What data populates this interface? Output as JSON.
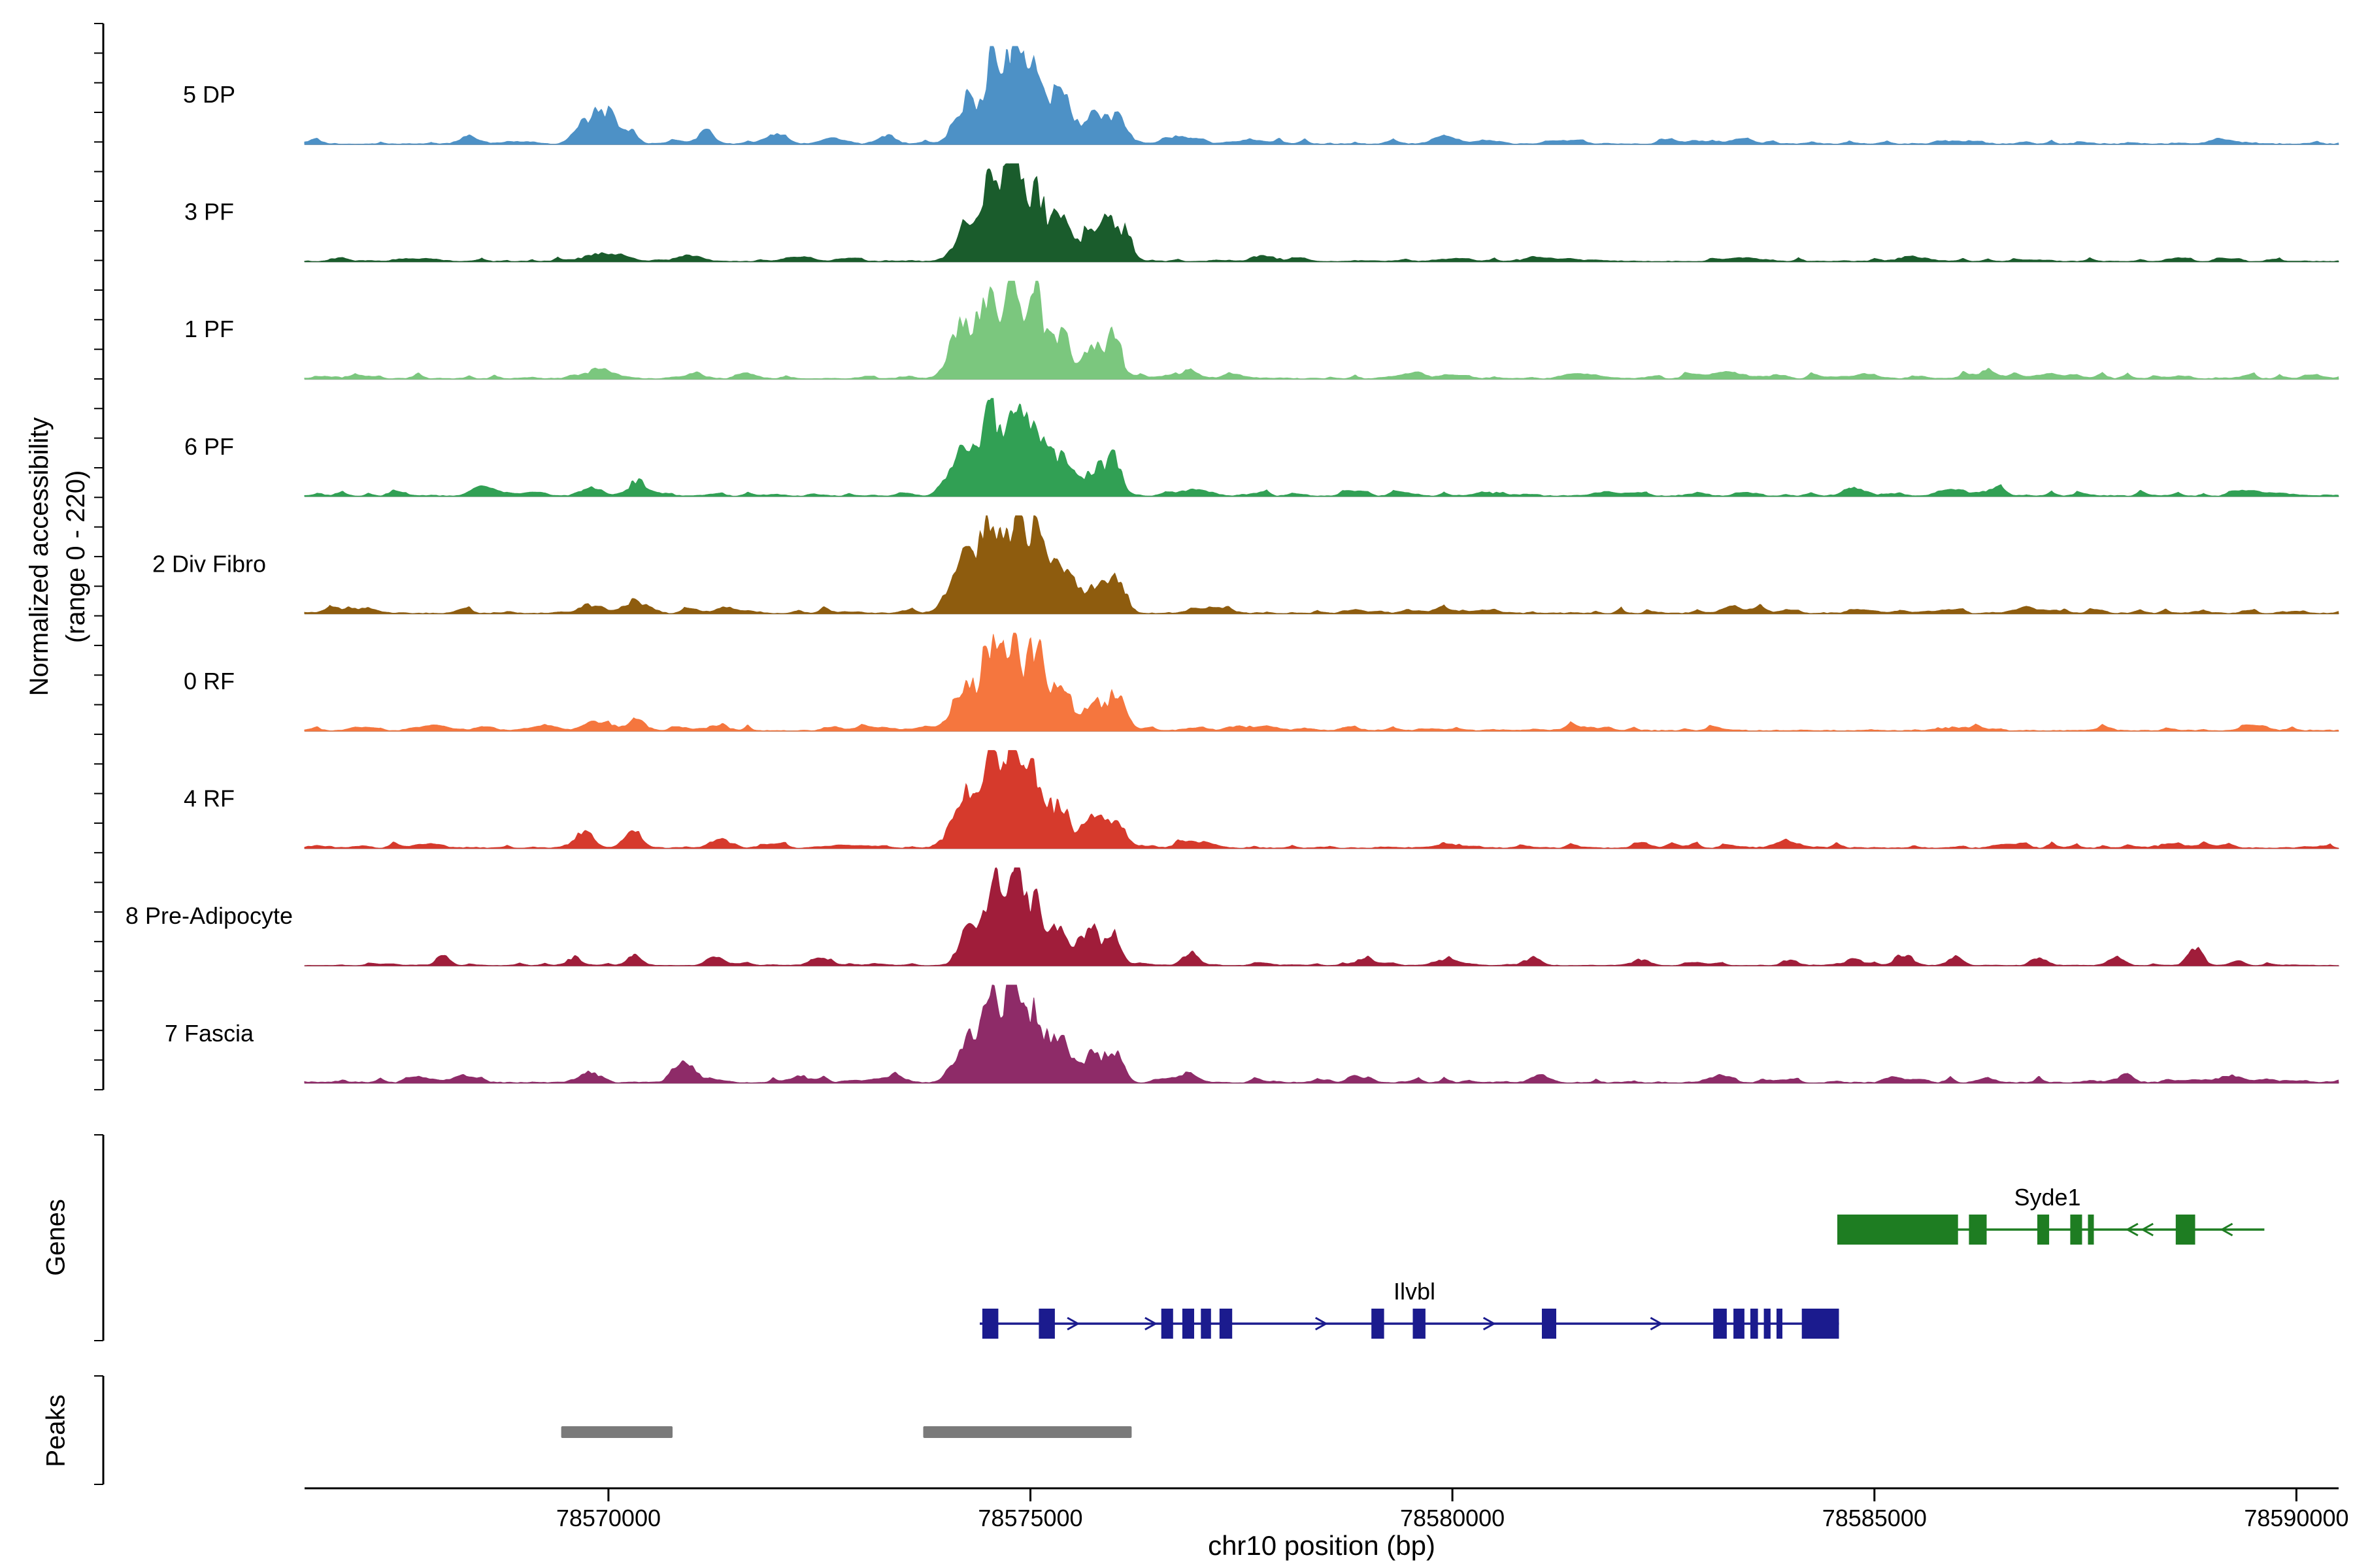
{
  "figure": {
    "y_axis_label_line1": "Normalized accessibility",
    "y_axis_label_line2": "(range 0 - 220)",
    "genes_label": "Genes",
    "peaks_label": "Peaks",
    "x_axis_title": "chr10 position (bp)",
    "colors": {
      "baseline": "#9c9c9c",
      "axis": "#000000",
      "peak_bar": "#7a7a7a"
    }
  },
  "chart_data": {
    "type": "area",
    "title": "",
    "xlabel": "chr10 position (bp)",
    "ylabel": "Normalized accessibility (range 0 - 220)",
    "x_domain_bp": [
      78566400,
      78590500
    ],
    "x_ticks": [
      78570000,
      78575000,
      78580000,
      78585000,
      78590000
    ],
    "track_value_range": [
      0,
      220
    ],
    "signal_model": "peaks are [center_bp, width_bp, height_fraction_of_track_max]",
    "tracks": [
      {
        "label": "5 DP",
        "color": "#4d91c6",
        "noise": 0.028,
        "peaks": [
          [
            78568300,
            200,
            0.04
          ],
          [
            78569650,
            180,
            0.14
          ],
          [
            78569850,
            220,
            0.3
          ],
          [
            78570060,
            180,
            0.24
          ],
          [
            78570260,
            140,
            0.12
          ],
          [
            78571150,
            160,
            0.09
          ],
          [
            78571950,
            300,
            0.05
          ],
          [
            78572600,
            200,
            0.04
          ],
          [
            78573300,
            200,
            0.06
          ],
          [
            78574250,
            260,
            0.45
          ],
          [
            78574550,
            200,
            0.78
          ],
          [
            78574800,
            180,
            1.0
          ],
          [
            78575060,
            200,
            0.9
          ],
          [
            78575350,
            240,
            0.5
          ],
          [
            78575800,
            280,
            0.3
          ],
          [
            78576080,
            180,
            0.2
          ],
          [
            78576700,
            250,
            0.07
          ],
          [
            78577600,
            300,
            0.04
          ],
          [
            78580000,
            400,
            0.03
          ],
          [
            78583000,
            400,
            0.03
          ],
          [
            78586000,
            400,
            0.03
          ]
        ]
      },
      {
        "label": "3 PF",
        "color": "#1a5c2c",
        "noise": 0.022,
        "peaks": [
          [
            78569900,
            400,
            0.07
          ],
          [
            78570900,
            300,
            0.04
          ],
          [
            78574250,
            260,
            0.42
          ],
          [
            78574550,
            200,
            0.82
          ],
          [
            78574800,
            180,
            1.0
          ],
          [
            78575060,
            200,
            0.72
          ],
          [
            78575350,
            240,
            0.45
          ],
          [
            78575700,
            200,
            0.3
          ],
          [
            78575950,
            200,
            0.45
          ],
          [
            78576150,
            150,
            0.2
          ],
          [
            78577800,
            300,
            0.04
          ],
          [
            78581000,
            400,
            0.03
          ],
          [
            78585500,
            400,
            0.03
          ]
        ]
      },
      {
        "label": "1 PF",
        "color": "#7bc77e",
        "noise": 0.028,
        "peaks": [
          [
            78569900,
            350,
            0.09
          ],
          [
            78571000,
            250,
            0.05
          ],
          [
            78574200,
            280,
            0.55
          ],
          [
            78574500,
            200,
            0.85
          ],
          [
            78574780,
            180,
            0.95
          ],
          [
            78575050,
            200,
            0.8
          ],
          [
            78575350,
            240,
            0.45
          ],
          [
            78575750,
            250,
            0.3
          ],
          [
            78576000,
            180,
            0.38
          ],
          [
            78576800,
            250,
            0.06
          ],
          [
            78579500,
            400,
            0.03
          ],
          [
            78583500,
            400,
            0.03
          ],
          [
            78586300,
            300,
            0.05
          ]
        ]
      },
      {
        "label": "6 PF",
        "color": "#31a054",
        "noise": 0.028,
        "peaks": [
          [
            78568500,
            250,
            0.05
          ],
          [
            78569800,
            250,
            0.08
          ],
          [
            78570350,
            200,
            0.15
          ],
          [
            78574200,
            280,
            0.5
          ],
          [
            78574520,
            200,
            0.85
          ],
          [
            78574800,
            180,
            0.95
          ],
          [
            78575060,
            200,
            0.75
          ],
          [
            78575350,
            240,
            0.42
          ],
          [
            78575750,
            250,
            0.28
          ],
          [
            78576000,
            180,
            0.33
          ],
          [
            78577000,
            300,
            0.05
          ],
          [
            78580500,
            400,
            0.03
          ],
          [
            78584800,
            300,
            0.05
          ],
          [
            78586400,
            300,
            0.06
          ]
        ]
      },
      {
        "label": "2 Div Fibro",
        "color": "#8e5c0e",
        "noise": 0.03,
        "peaks": [
          [
            78566900,
            300,
            0.05
          ],
          [
            78569800,
            300,
            0.08
          ],
          [
            78570300,
            220,
            0.12
          ],
          [
            78571400,
            250,
            0.05
          ],
          [
            78574200,
            300,
            0.55
          ],
          [
            78574520,
            220,
            0.88
          ],
          [
            78574820,
            200,
            0.95
          ],
          [
            78575080,
            220,
            0.78
          ],
          [
            78575380,
            260,
            0.45
          ],
          [
            78575800,
            280,
            0.3
          ],
          [
            78576050,
            180,
            0.25
          ],
          [
            78577200,
            300,
            0.05
          ],
          [
            78580000,
            400,
            0.03
          ],
          [
            78583500,
            400,
            0.03
          ],
          [
            78587000,
            400,
            0.03
          ]
        ]
      },
      {
        "label": "0 RF",
        "color": "#f5763e",
        "noise": 0.028,
        "peaks": [
          [
            78569900,
            300,
            0.1
          ],
          [
            78570350,
            200,
            0.1
          ],
          [
            78571300,
            250,
            0.05
          ],
          [
            78574220,
            280,
            0.5
          ],
          [
            78574540,
            200,
            0.85
          ],
          [
            78574800,
            180,
            0.95
          ],
          [
            78575060,
            200,
            0.82
          ],
          [
            78575360,
            240,
            0.45
          ],
          [
            78575780,
            260,
            0.3
          ],
          [
            78576030,
            180,
            0.3
          ],
          [
            78577500,
            300,
            0.04
          ],
          [
            78581500,
            400,
            0.03
          ],
          [
            78586000,
            400,
            0.03
          ]
        ]
      },
      {
        "label": "4 RF",
        "color": "#d63a2c",
        "noise": 0.028,
        "peaks": [
          [
            78569700,
            220,
            0.16
          ],
          [
            78570300,
            200,
            0.18
          ],
          [
            78571300,
            220,
            0.07
          ],
          [
            78574220,
            280,
            0.5
          ],
          [
            78574540,
            200,
            0.88
          ],
          [
            78574800,
            180,
            0.95
          ],
          [
            78575060,
            200,
            0.75
          ],
          [
            78575350,
            240,
            0.42
          ],
          [
            78575760,
            260,
            0.3
          ],
          [
            78576020,
            180,
            0.28
          ],
          [
            78576900,
            250,
            0.06
          ],
          [
            78580000,
            400,
            0.03
          ],
          [
            78584000,
            400,
            0.03
          ],
          [
            78588500,
            300,
            0.04
          ]
        ]
      },
      {
        "label": "8 Pre-Adipocyte",
        "color": "#a01d3a",
        "noise": 0.015,
        "peaks": [
          [
            78568050,
            140,
            0.13
          ],
          [
            78569600,
            180,
            0.08
          ],
          [
            78570300,
            180,
            0.09
          ],
          [
            78571250,
            180,
            0.07
          ],
          [
            78572550,
            200,
            0.08
          ],
          [
            78574300,
            240,
            0.45
          ],
          [
            78574560,
            190,
            0.8
          ],
          [
            78574800,
            170,
            1.0
          ],
          [
            78575040,
            190,
            0.62
          ],
          [
            78575320,
            220,
            0.35
          ],
          [
            78575700,
            240,
            0.38
          ],
          [
            78575980,
            170,
            0.3
          ],
          [
            78576900,
            180,
            0.13
          ],
          [
            78578950,
            180,
            0.07
          ],
          [
            78579950,
            180,
            0.07
          ],
          [
            78580950,
            180,
            0.08
          ],
          [
            78582250,
            180,
            0.06
          ],
          [
            78584000,
            180,
            0.05
          ],
          [
            78584750,
            180,
            0.07
          ],
          [
            78585350,
            200,
            0.11
          ],
          [
            78585950,
            180,
            0.08
          ],
          [
            78586950,
            180,
            0.08
          ],
          [
            78587850,
            180,
            0.06
          ],
          [
            78588800,
            170,
            0.17
          ],
          [
            78589300,
            150,
            0.05
          ]
        ]
      },
      {
        "label": "7 Fascia",
        "color": "#8e2b68",
        "noise": 0.03,
        "peaks": [
          [
            78568300,
            200,
            0.05
          ],
          [
            78569800,
            220,
            0.09
          ],
          [
            78570900,
            260,
            0.2
          ],
          [
            78572250,
            220,
            0.07
          ],
          [
            78573400,
            200,
            0.06
          ],
          [
            78574250,
            260,
            0.5
          ],
          [
            78574550,
            200,
            0.85
          ],
          [
            78574800,
            180,
            1.0
          ],
          [
            78575060,
            200,
            0.72
          ],
          [
            78575340,
            240,
            0.4
          ],
          [
            78575750,
            260,
            0.3
          ],
          [
            78576000,
            180,
            0.25
          ],
          [
            78576900,
            220,
            0.07
          ],
          [
            78578850,
            200,
            0.06
          ],
          [
            78581050,
            220,
            0.07
          ],
          [
            78583200,
            250,
            0.05
          ],
          [
            78585250,
            220,
            0.07
          ],
          [
            78587950,
            220,
            0.06
          ],
          [
            78589200,
            200,
            0.05
          ]
        ]
      }
    ],
    "genes": [
      {
        "name": "Syde1",
        "strand": "-",
        "color": "#1e7d22",
        "line_start": 78584560,
        "line_end": 78589620,
        "exons": [
          [
            78584560,
            78585990
          ],
          [
            78586120,
            78586330
          ],
          [
            78586930,
            78587070
          ],
          [
            78587320,
            78587460
          ],
          [
            78587530,
            78587600
          ],
          [
            78588570,
            78588800
          ]
        ],
        "arrows_bp": [
          78588060,
          78588240,
          78589180
        ],
        "label_bp": 78587050
      },
      {
        "name": "Ilvbl",
        "strand": "+",
        "color": "#1b1b8e",
        "line_start": 78574400,
        "line_end": 78584580,
        "exons": [
          [
            78574430,
            78574620
          ],
          [
            78575100,
            78575290
          ],
          [
            78576550,
            78576690
          ],
          [
            78576800,
            78576940
          ],
          [
            78577020,
            78577140
          ],
          [
            78577240,
            78577390
          ],
          [
            78579040,
            78579190
          ],
          [
            78579530,
            78579680
          ],
          [
            78581060,
            78581230
          ],
          [
            78583090,
            78583250
          ],
          [
            78583330,
            78583460
          ],
          [
            78583530,
            78583620
          ],
          [
            78583690,
            78583770
          ],
          [
            78583840,
            78583910
          ],
          [
            78584140,
            78584580
          ]
        ],
        "arrows_bp": [
          78575500,
          78576420,
          78578440,
          78580430,
          78582410
        ],
        "label_bp": 78579550
      }
    ],
    "peaks_track": [
      [
        78569440,
        78570760
      ],
      [
        78573730,
        78576200
      ]
    ]
  }
}
